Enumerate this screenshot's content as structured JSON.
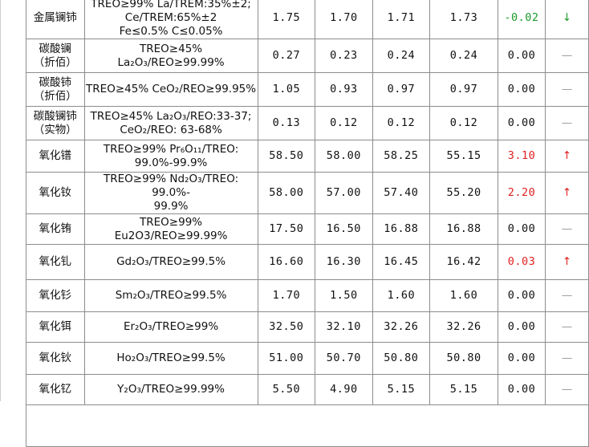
{
  "rows": [
    {
      "name_lines": [
        "金属镧铈"
      ],
      "spec_lines": [
        "TREO≥99% La/TREM:35%±2;",
        "Ce/TREM:65%±2",
        "Fe≤0.5% C≤0.05%"
      ],
      "v1": "1.75",
      "v2": "1.70",
      "v3": "1.71",
      "v4": "1.73",
      "change": "-0.02",
      "dir": "down",
      "arrow": "↓"
    },
    {
      "name_lines": [
        "碳酸镧",
        "（折佰）"
      ],
      "spec_lines": [
        "TREO≥45% La₂O₃/REO≥99.99%"
      ],
      "v1": "0.27",
      "v2": "0.23",
      "v3": "0.24",
      "v4": "0.24",
      "change": "0.00",
      "dir": "flat",
      "arrow": "—"
    },
    {
      "name_lines": [
        "碳酸铈",
        "（折佰）"
      ],
      "spec_lines": [
        "TREO≥45% CeO₂/REO≥99.95%"
      ],
      "v1": "1.05",
      "v2": "0.93",
      "v3": "0.97",
      "v4": "0.97",
      "change": "0.00",
      "dir": "flat",
      "arrow": "—"
    },
    {
      "name_lines": [
        "碳酸镧铈",
        "（实物）"
      ],
      "spec_lines": [
        "TREO≥45% La₂O₃/REO:33-37;",
        "CeO₂/REO: 63-68%"
      ],
      "v1": "0.13",
      "v2": "0.12",
      "v3": "0.12",
      "v4": "0.12",
      "change": "0.00",
      "dir": "flat",
      "arrow": "—"
    },
    {
      "name_lines": [
        "氧化镨"
      ],
      "spec_lines": [
        "TREO≥99%   Pr₆O₁₁/TREO:",
        "99.0%-99.9%"
      ],
      "v1": "58.50",
      "v2": "58.00",
      "v3": "58.25",
      "v4": "55.15",
      "change": "3.10",
      "dir": "up",
      "arrow": "↑"
    },
    {
      "name_lines": [
        "氧化钕"
      ],
      "spec_lines": [
        "TREO≥99%   Nd₂O₃/TREO: 99.0%-",
        "99.9%"
      ],
      "v1": "58.00",
      "v2": "57.00",
      "v3": "57.40",
      "v4": "55.20",
      "change": "2.20",
      "dir": "up",
      "arrow": "↑"
    },
    {
      "name_lines": [
        "氧化铕"
      ],
      "spec_lines": [
        "TREO≥99%  Eu2O3/REO≥99.99%"
      ],
      "v1": "17.50",
      "v2": "16.50",
      "v3": "16.88",
      "v4": "16.88",
      "change": "0.00",
      "dir": "flat",
      "arrow": "—"
    },
    {
      "name_lines": [
        "氧化钆"
      ],
      "spec_lines": [
        "Gd₂O₃/TREO≥99.5%"
      ],
      "v1": "16.60",
      "v2": "16.30",
      "v3": "16.45",
      "v4": "16.42",
      "change": "0.03",
      "dir": "up",
      "arrow": "↑"
    },
    {
      "name_lines": [
        "氧化钐"
      ],
      "spec_lines": [
        "Sm₂O₃/TREO≥99.5%"
      ],
      "v1": "1.70",
      "v2": "1.50",
      "v3": "1.60",
      "v4": "1.60",
      "change": "0.00",
      "dir": "flat",
      "arrow": "—"
    },
    {
      "name_lines": [
        "氧化铒"
      ],
      "spec_lines": [
        "Er₂O₃/TREO≥99%"
      ],
      "v1": "32.50",
      "v2": "32.10",
      "v3": "32.26",
      "v4": "32.26",
      "change": "0.00",
      "dir": "flat",
      "arrow": "—"
    },
    {
      "name_lines": [
        "氧化钬"
      ],
      "spec_lines": [
        "Ho₂O₃/TREO≥99.5%"
      ],
      "v1": "51.00",
      "v2": "50.70",
      "v3": "50.80",
      "v4": "50.80",
      "change": "0.00",
      "dir": "flat",
      "arrow": "—"
    },
    {
      "name_lines": [
        "氧化钇"
      ],
      "spec_lines": [
        "Y₂O₃/TREO≥99.99%"
      ],
      "v1": "5.50",
      "v2": "4.90",
      "v3": "5.15",
      "v4": "5.15",
      "change": "0.00",
      "dir": "flat",
      "arrow": "—"
    }
  ],
  "colors": {
    "up": "#e02020",
    "down": "#1a9a2a",
    "flat": "#9a9a9a",
    "border": "#8c8c8c"
  }
}
